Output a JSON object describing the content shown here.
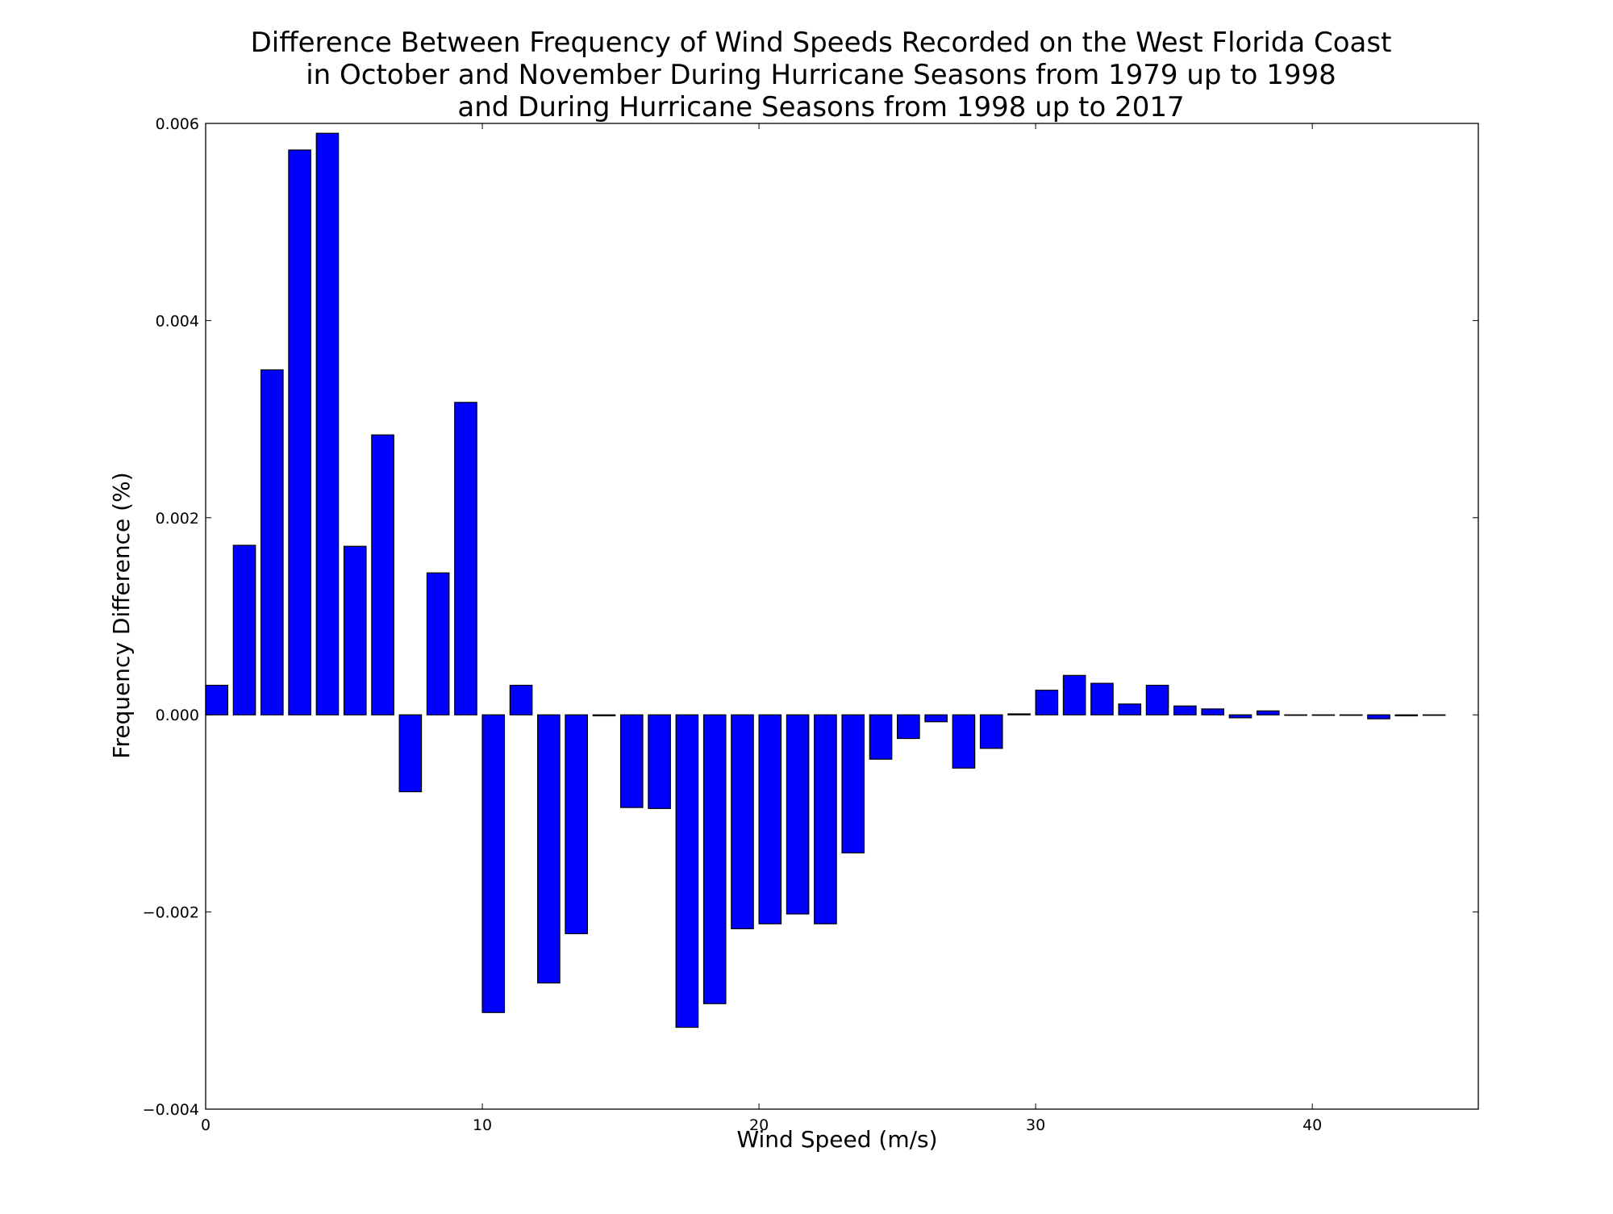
{
  "chart_data": {
    "type": "bar",
    "title_lines": [
      "Difference Between Frequency of Wind Speeds Recorded on the West Florida Coast",
      "in October and November During Hurricane Seasons from 1979 up to 1998",
      "and During Hurricane Seasons from 1998 up to 2017"
    ],
    "xlabel": "Wind Speed (m/s)",
    "ylabel": "Frequency Difference (%)",
    "xlim": [
      0,
      46
    ],
    "ylim": [
      -0.004,
      0.006
    ],
    "x_ticks": [
      0,
      10,
      20,
      30,
      40
    ],
    "y_ticks": [
      -0.004,
      -0.002,
      0.0,
      0.002,
      0.004,
      0.006
    ],
    "x_tick_labels": [
      "0",
      "10",
      "20",
      "30",
      "40"
    ],
    "y_tick_labels": [
      "−0.004",
      "−0.002",
      "0.000",
      "0.002",
      "0.004",
      "0.006"
    ],
    "bar_width": 0.8,
    "bar_color": "#0000ff",
    "bar_edge_color": "#000000",
    "grid": false,
    "legend": "none",
    "x": [
      0,
      1,
      2,
      3,
      4,
      5,
      6,
      7,
      8,
      9,
      10,
      11,
      12,
      13,
      14,
      15,
      16,
      17,
      18,
      19,
      20,
      21,
      22,
      23,
      24,
      25,
      26,
      27,
      28,
      29,
      30,
      31,
      32,
      33,
      34,
      35,
      36,
      37,
      38,
      39,
      40,
      41,
      42,
      43,
      44
    ],
    "values": [
      0.0003,
      0.00172,
      0.0035,
      0.00573,
      0.0059,
      0.00171,
      0.00284,
      -0.00078,
      0.00144,
      0.00317,
      -0.00302,
      0.0003,
      -0.00272,
      -0.00222,
      -1e-05,
      -0.00094,
      -0.00095,
      -0.00317,
      -0.00293,
      -0.00217,
      -0.00212,
      -0.00202,
      -0.00212,
      -0.0014,
      -0.00045,
      -0.00024,
      -7e-05,
      -0.00054,
      -0.00034,
      1e-05,
      0.00025,
      0.0004,
      0.00032,
      0.00011,
      0.0003,
      9e-05,
      6e-05,
      -3e-05,
      4e-05,
      0.0,
      0.0,
      0.0,
      -4e-05,
      -1e-05,
      0.0
    ]
  }
}
